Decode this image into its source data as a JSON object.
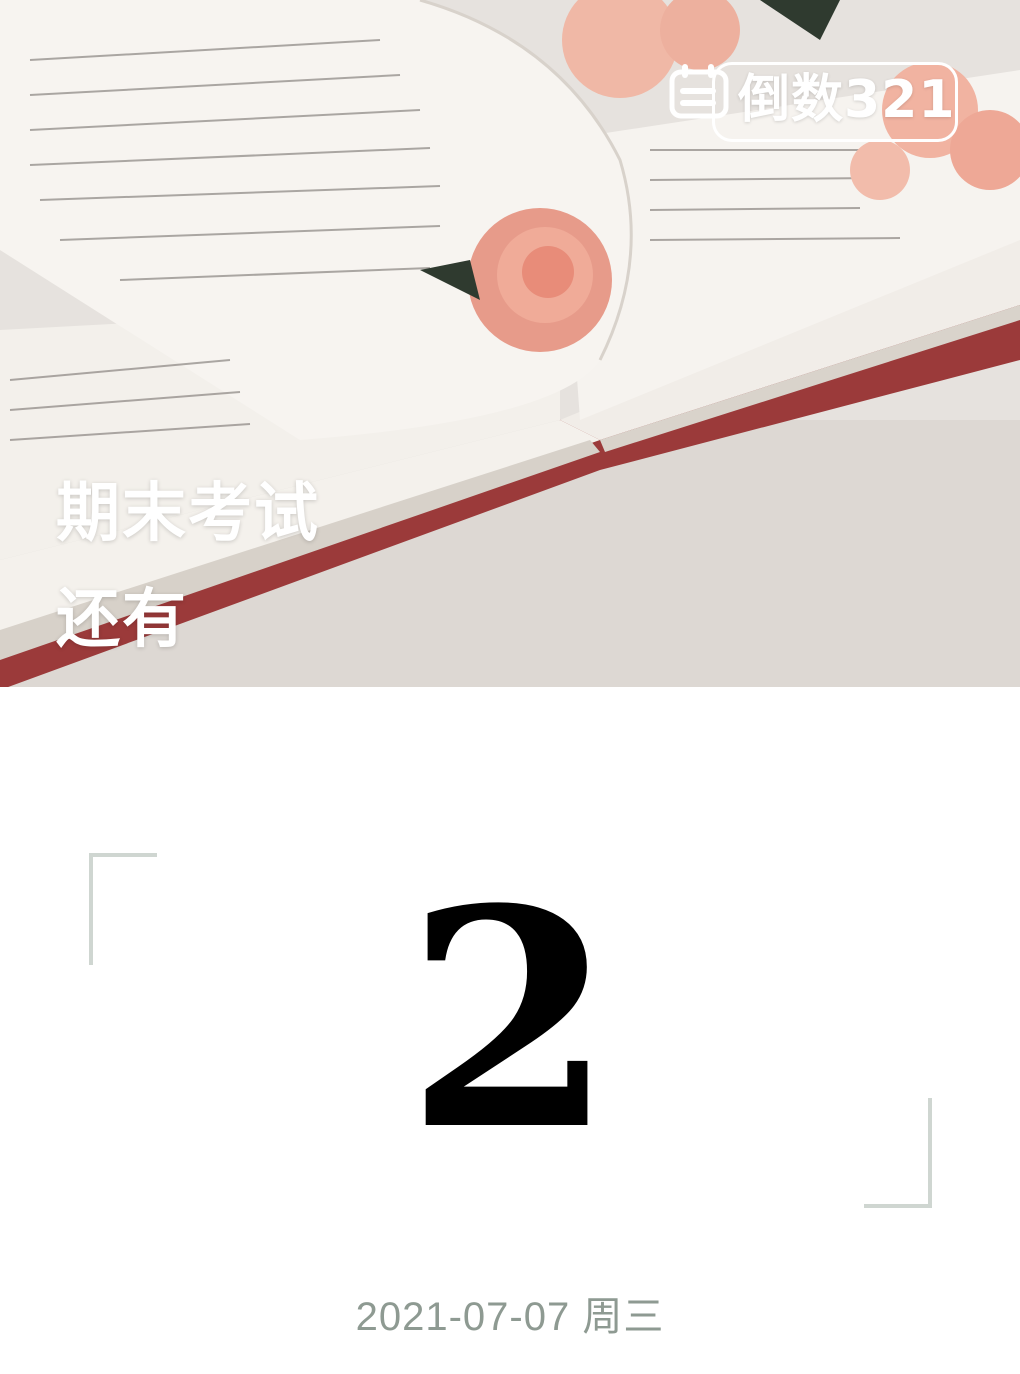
{
  "brand": {
    "name": "倒数321",
    "icon": "calendar-icon"
  },
  "event": {
    "title": "期末考试",
    "subtitle": "还有"
  },
  "countdown": {
    "days": "2",
    "date": "2021-07-07 周三"
  },
  "colors": {
    "corner_bracket": "#cfd6d1",
    "date_text": "#8e9a92",
    "number": "#000000"
  }
}
